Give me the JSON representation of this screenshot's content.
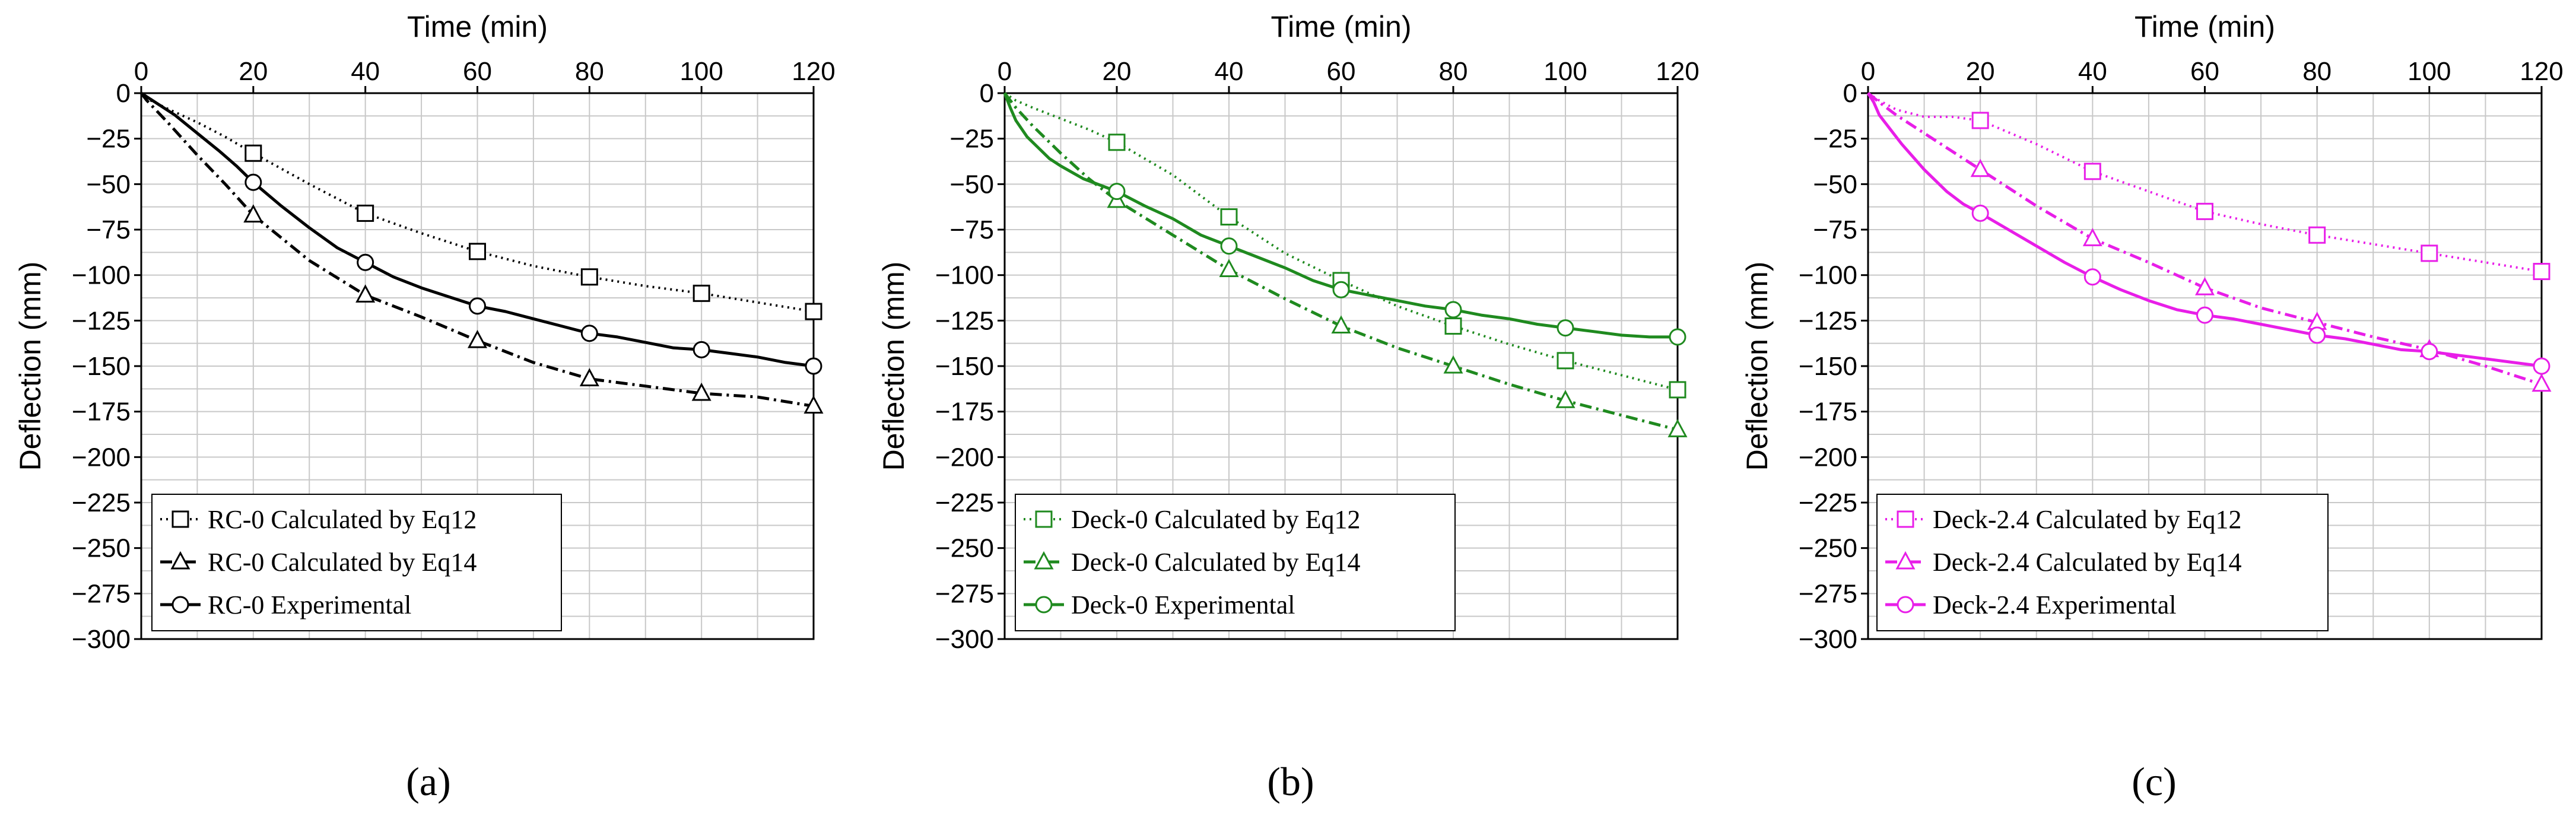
{
  "figure": {
    "panel_labels": [
      "(a)",
      "(b)",
      "(c)"
    ],
    "grid_color": "#c8c8c8",
    "axis_color": "#000000"
  },
  "chart_data": [
    {
      "type": "line",
      "panel": "(a)",
      "color": "#000000",
      "title": "",
      "xlabel": "Time (min)",
      "ylabel": "Deflection (mm)",
      "xlim": [
        0,
        120
      ],
      "ylim": [
        -300,
        0
      ],
      "xticks": [
        0,
        20,
        40,
        60,
        80,
        100,
        120
      ],
      "yticks": [
        0,
        -25,
        -50,
        -75,
        -100,
        -125,
        -150,
        -175,
        -200,
        -225,
        -250,
        -275,
        -300
      ],
      "grid": true,
      "legend_position": "bottom-left",
      "series": [
        {
          "name": "RC-0 Calculated by Eq12",
          "dash": "dotted",
          "marker": "square",
          "x": [
            0,
            1,
            5,
            10,
            15,
            20,
            30,
            40,
            50,
            60,
            70,
            80,
            90,
            100,
            110,
            120
          ],
          "y": [
            0,
            -3,
            -9,
            -16,
            -24,
            -33,
            -50,
            -66,
            -77,
            -87,
            -95,
            -101,
            -106,
            -110,
            -115,
            -120
          ],
          "marker_x": [
            20,
            40,
            60,
            80,
            100,
            120
          ]
        },
        {
          "name": "RC-0 Calculated by Eq14",
          "dash": "dashdot",
          "marker": "triangle",
          "x": [
            0,
            1,
            5,
            10,
            15,
            20,
            30,
            40,
            50,
            60,
            70,
            80,
            90,
            100,
            110,
            120
          ],
          "y": [
            0,
            -4,
            -17,
            -34,
            -50,
            -67,
            -92,
            -111,
            -123,
            -136,
            -148,
            -157,
            -161,
            -165,
            -167,
            -172
          ],
          "marker_x": [
            20,
            40,
            60,
            80,
            100,
            120
          ]
        },
        {
          "name": "RC-0 Experimental",
          "dash": "solid",
          "marker": "circle",
          "x": [
            0,
            1,
            3,
            6,
            10,
            14,
            17,
            20,
            25,
            30,
            35,
            40,
            45,
            50,
            55,
            60,
            65,
            70,
            75,
            80,
            85,
            90,
            95,
            100,
            105,
            110,
            115,
            120
          ],
          "y": [
            0,
            -2,
            -6,
            -12,
            -22,
            -32,
            -40,
            -49,
            -62,
            -74,
            -85,
            -93,
            -101,
            -107,
            -112,
            -117,
            -120,
            -124,
            -128,
            -132,
            -134,
            -137,
            -140,
            -141,
            -143,
            -145,
            -148,
            -150
          ],
          "marker_x": [
            20,
            40,
            60,
            80,
            100,
            120
          ]
        }
      ]
    },
    {
      "type": "line",
      "panel": "(b)",
      "color": "#1f8a1f",
      "title": "",
      "xlabel": "Time (min)",
      "ylabel": "Deflection (mm)",
      "xlim": [
        0,
        120
      ],
      "ylim": [
        -300,
        0
      ],
      "xticks": [
        0,
        20,
        40,
        60,
        80,
        100,
        120
      ],
      "yticks": [
        0,
        -25,
        -50,
        -75,
        -100,
        -125,
        -150,
        -175,
        -200,
        -225,
        -250,
        -275,
        -300
      ],
      "grid": true,
      "legend_position": "bottom-left",
      "series": [
        {
          "name": "Deck-0 Calculated by Eq12",
          "dash": "dotted",
          "marker": "square",
          "x": [
            0,
            2,
            5,
            10,
            15,
            20,
            30,
            40,
            50,
            60,
            70,
            80,
            90,
            100,
            110,
            120
          ],
          "y": [
            0,
            -4,
            -8,
            -14,
            -20,
            -27,
            -45,
            -68,
            -88,
            -103,
            -117,
            -128,
            -138,
            -147,
            -155,
            -163
          ],
          "marker_x": [
            20,
            40,
            60,
            80,
            100,
            120
          ]
        },
        {
          "name": "Deck-0 Calculated by Eq14",
          "dash": "dashdot",
          "marker": "triangle",
          "x": [
            0,
            2,
            5,
            10,
            15,
            20,
            30,
            40,
            50,
            60,
            70,
            80,
            90,
            100,
            110,
            120
          ],
          "y": [
            0,
            -8,
            -18,
            -33,
            -47,
            -59,
            -78,
            -97,
            -113,
            -128,
            -140,
            -150,
            -160,
            -169,
            -177,
            -185
          ],
          "marker_x": [
            20,
            40,
            60,
            80,
            100,
            120
          ]
        },
        {
          "name": "Deck-0 Experimental",
          "dash": "solid",
          "marker": "circle",
          "x": [
            0,
            1,
            2,
            4,
            6,
            8,
            10,
            14,
            20,
            25,
            30,
            35,
            40,
            45,
            50,
            55,
            60,
            65,
            70,
            75,
            80,
            85,
            90,
            95,
            100,
            105,
            110,
            115,
            120
          ],
          "y": [
            0,
            -8,
            -15,
            -24,
            -30,
            -36,
            -40,
            -47,
            -54,
            -62,
            -69,
            -78,
            -84,
            -90,
            -96,
            -103,
            -108,
            -111,
            -114,
            -117,
            -119,
            -122,
            -124,
            -127,
            -129,
            -131,
            -133,
            -134,
            -134
          ],
          "marker_x": [
            20,
            40,
            60,
            80,
            100,
            120
          ]
        }
      ]
    },
    {
      "type": "line",
      "panel": "(c)",
      "color": "#e81ee8",
      "title": "",
      "xlabel": "Time (min)",
      "ylabel": "Deflection (mm)",
      "xlim": [
        0,
        120
      ],
      "ylim": [
        -300,
        0
      ],
      "xticks": [
        0,
        20,
        40,
        60,
        80,
        100,
        120
      ],
      "yticks": [
        0,
        -25,
        -50,
        -75,
        -100,
        -125,
        -150,
        -175,
        -200,
        -225,
        -250,
        -275,
        -300
      ],
      "grid": true,
      "legend_position": "bottom-left",
      "series": [
        {
          "name": "Deck-2.4 Calculated by Eq12",
          "dash": "dotted",
          "marker": "square",
          "x": [
            0,
            2,
            5,
            10,
            15,
            20,
            30,
            40,
            50,
            60,
            70,
            80,
            90,
            100,
            110,
            120
          ],
          "y": [
            0,
            -4,
            -9,
            -13,
            -13,
            -15,
            -28,
            -43,
            -54,
            -65,
            -72,
            -78,
            -83,
            -88,
            -93,
            -98
          ],
          "marker_x": [
            20,
            40,
            60,
            80,
            100,
            120
          ]
        },
        {
          "name": "Deck-2.4 Calculated by Eq14",
          "dash": "dashdot",
          "marker": "triangle",
          "x": [
            0,
            2,
            5,
            10,
            15,
            20,
            30,
            40,
            50,
            60,
            70,
            80,
            90,
            100,
            110,
            120
          ],
          "y": [
            0,
            -5,
            -12,
            -22,
            -32,
            -42,
            -62,
            -80,
            -93,
            -107,
            -118,
            -126,
            -134,
            -141,
            -150,
            -160
          ],
          "marker_x": [
            20,
            40,
            60,
            80,
            100,
            120
          ]
        },
        {
          "name": "Deck-2.4 Experimental",
          "dash": "solid",
          "marker": "circle",
          "x": [
            0,
            1,
            2,
            4,
            6,
            8,
            10,
            14,
            17,
            20,
            25,
            30,
            35,
            40,
            45,
            50,
            55,
            60,
            65,
            70,
            75,
            80,
            85,
            90,
            95,
            100,
            105,
            110,
            115,
            120
          ],
          "y": [
            0,
            -5,
            -12,
            -20,
            -28,
            -35,
            -42,
            -54,
            -61,
            -66,
            -75,
            -84,
            -93,
            -101,
            -108,
            -114,
            -119,
            -122,
            -124,
            -127,
            -130,
            -133,
            -135,
            -138,
            -141,
            -142,
            -144,
            -146,
            -148,
            -150
          ],
          "marker_x": [
            20,
            40,
            60,
            80,
            100,
            120
          ]
        }
      ]
    }
  ]
}
